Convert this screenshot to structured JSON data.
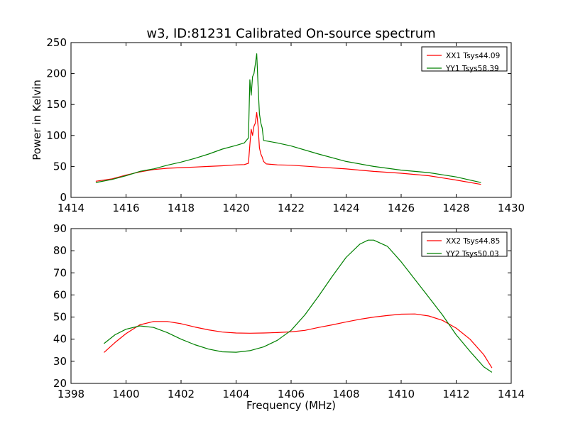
{
  "chart_data": [
    {
      "type": "line",
      "title": "w3, ID:81231 Calibrated On-source spectrum",
      "xlabel": "",
      "ylabel": "Power in Kelvin",
      "xlim": [
        1414,
        1430
      ],
      "ylim": [
        0,
        250
      ],
      "xticks": [
        "1414",
        "1416",
        "1418",
        "1420",
        "1422",
        "1424",
        "1426",
        "1428",
        "1430"
      ],
      "yticks": [
        "0",
        "50",
        "100",
        "150",
        "200",
        "250"
      ],
      "grid": false,
      "legend_position": "top-right",
      "series": [
        {
          "name": "XX1 Tsys44.09",
          "color": "#ff0000",
          "points": [
            [
              1414.9,
              26
            ],
            [
              1415.5,
              30
            ],
            [
              1416.0,
              36
            ],
            [
              1416.5,
              41
            ],
            [
              1417.0,
              45
            ],
            [
              1417.5,
              47
            ],
            [
              1418.0,
              48
            ],
            [
              1418.5,
              49
            ],
            [
              1419.0,
              50
            ],
            [
              1419.5,
              51
            ],
            [
              1420.0,
              52.5
            ],
            [
              1420.3,
              53
            ],
            [
              1420.45,
              55
            ],
            [
              1420.5,
              85
            ],
            [
              1420.55,
              110
            ],
            [
              1420.6,
              100
            ],
            [
              1420.65,
              115
            ],
            [
              1420.7,
              120
            ],
            [
              1420.75,
              137
            ],
            [
              1420.8,
              115
            ],
            [
              1420.85,
              80
            ],
            [
              1420.9,
              70
            ],
            [
              1420.95,
              65
            ],
            [
              1421.0,
              58
            ],
            [
              1421.1,
              54
            ],
            [
              1421.5,
              52.5
            ],
            [
              1422.0,
              52
            ],
            [
              1423.0,
              49
            ],
            [
              1424.0,
              46
            ],
            [
              1425.0,
              42
            ],
            [
              1426.0,
              39
            ],
            [
              1427.0,
              35
            ],
            [
              1428.0,
              28
            ],
            [
              1428.9,
              21
            ]
          ]
        },
        {
          "name": "YY1 Tsys58.39",
          "color": "#008000",
          "points": [
            [
              1414.9,
              24
            ],
            [
              1415.5,
              29
            ],
            [
              1416.0,
              35
            ],
            [
              1416.5,
              42
            ],
            [
              1417.0,
              46
            ],
            [
              1417.5,
              52
            ],
            [
              1418.0,
              57
            ],
            [
              1418.5,
              63
            ],
            [
              1419.0,
              70
            ],
            [
              1419.5,
              78
            ],
            [
              1420.0,
              84
            ],
            [
              1420.3,
              88
            ],
            [
              1420.45,
              96
            ],
            [
              1420.5,
              190
            ],
            [
              1420.55,
              165
            ],
            [
              1420.6,
              195
            ],
            [
              1420.65,
              200
            ],
            [
              1420.7,
              215
            ],
            [
              1420.75,
              232
            ],
            [
              1420.8,
              180
            ],
            [
              1420.85,
              135
            ],
            [
              1420.9,
              120
            ],
            [
              1420.95,
              112
            ],
            [
              1421.0,
              92
            ],
            [
              1421.5,
              88
            ],
            [
              1422.0,
              83
            ],
            [
              1423.0,
              70
            ],
            [
              1424.0,
              58
            ],
            [
              1425.0,
              50
            ],
            [
              1426.0,
              44
            ],
            [
              1427.0,
              40
            ],
            [
              1428.0,
              33
            ],
            [
              1428.9,
              24
            ]
          ]
        }
      ]
    },
    {
      "type": "line",
      "title": "",
      "xlabel": "Frequency (MHz)",
      "ylabel": "",
      "xlim": [
        1398,
        1414
      ],
      "ylim": [
        20,
        90
      ],
      "xticks": [
        "1398",
        "1400",
        "1402",
        "1404",
        "1406",
        "1408",
        "1410",
        "1412",
        "1414"
      ],
      "yticks": [
        "20",
        "30",
        "40",
        "50",
        "60",
        "70",
        "80",
        "90"
      ],
      "grid": false,
      "legend_position": "top-right",
      "series": [
        {
          "name": "XX2 Tsys44.85",
          "color": "#ff0000",
          "points": [
            [
              1399.2,
              34
            ],
            [
              1399.6,
              38.5
            ],
            [
              1400.0,
              42.5
            ],
            [
              1400.5,
              46.5
            ],
            [
              1401.0,
              48
            ],
            [
              1401.5,
              48
            ],
            [
              1402.0,
              47
            ],
            [
              1402.5,
              45.5
            ],
            [
              1403.0,
              44.2
            ],
            [
              1403.5,
              43.2
            ],
            [
              1404.0,
              42.8
            ],
            [
              1404.5,
              42.7
            ],
            [
              1405.0,
              42.8
            ],
            [
              1405.5,
              43
            ],
            [
              1406.0,
              43.3
            ],
            [
              1406.5,
              44
            ],
            [
              1407.0,
              45.3
            ],
            [
              1407.5,
              46.5
            ],
            [
              1408.0,
              47.8
            ],
            [
              1408.5,
              49
            ],
            [
              1409.0,
              50
            ],
            [
              1409.5,
              50.7
            ],
            [
              1410.0,
              51.3
            ],
            [
              1410.5,
              51.4
            ],
            [
              1411.0,
              50.5
            ],
            [
              1411.5,
              48.5
            ],
            [
              1412.0,
              45
            ],
            [
              1412.5,
              40
            ],
            [
              1413.0,
              33
            ],
            [
              1413.3,
              27
            ]
          ]
        },
        {
          "name": "YY2 Tsys50.03",
          "color": "#008000",
          "points": [
            [
              1399.2,
              38
            ],
            [
              1399.6,
              42
            ],
            [
              1400.0,
              44.5
            ],
            [
              1400.5,
              46
            ],
            [
              1401.0,
              45.3
            ],
            [
              1401.5,
              43
            ],
            [
              1402.0,
              40
            ],
            [
              1402.5,
              37.5
            ],
            [
              1403.0,
              35.5
            ],
            [
              1403.5,
              34.3
            ],
            [
              1404.0,
              34.1
            ],
            [
              1404.5,
              34.8
            ],
            [
              1405.0,
              36.5
            ],
            [
              1405.5,
              39.5
            ],
            [
              1406.0,
              44
            ],
            [
              1406.5,
              51
            ],
            [
              1407.0,
              59.5
            ],
            [
              1407.5,
              68.5
            ],
            [
              1408.0,
              77
            ],
            [
              1408.5,
              83
            ],
            [
              1408.8,
              84.8
            ],
            [
              1409.0,
              84.8
            ],
            [
              1409.5,
              82
            ],
            [
              1410.0,
              75
            ],
            [
              1410.5,
              67
            ],
            [
              1411.0,
              59
            ],
            [
              1411.5,
              51
            ],
            [
              1412.0,
              42
            ],
            [
              1412.5,
              34.5
            ],
            [
              1413.0,
              27.5
            ],
            [
              1413.3,
              25
            ]
          ]
        }
      ]
    }
  ]
}
